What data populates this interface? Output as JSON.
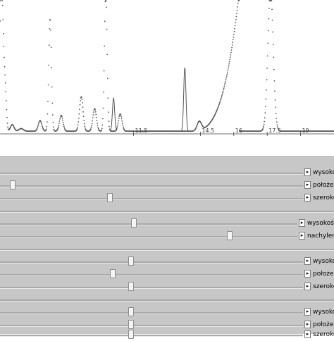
{
  "chart_data": {
    "type": "scatter",
    "x_ticks": [
      "11.5",
      "14.5",
      "16",
      "17.5",
      "19"
    ],
    "x_range": [
      5.5,
      20.5
    ],
    "y_range": [
      0,
      100
    ],
    "series": [
      {
        "style": "dotted-markers",
        "color": "#555555",
        "peaks": [
          {
            "x": 5.55,
            "height": 100,
            "width": 0.06
          },
          {
            "x": 5.65,
            "height": 48,
            "width": 0.06
          },
          {
            "x": 5.75,
            "height": 22,
            "width": 0.05
          },
          {
            "x": 6.05,
            "height": 5,
            "width": 0.08
          },
          {
            "x": 6.45,
            "height": 2,
            "width": 0.1
          },
          {
            "x": 7.3,
            "height": 8,
            "width": 0.08
          },
          {
            "x": 7.75,
            "height": 85,
            "width": 0.06
          },
          {
            "x": 8.25,
            "height": 12,
            "width": 0.08
          },
          {
            "x": 9.15,
            "height": 26,
            "width": 0.08
          },
          {
            "x": 9.75,
            "height": 17,
            "width": 0.08
          },
          {
            "x": 10.25,
            "height": 106,
            "width": 0.06
          },
          {
            "x": 10.9,
            "height": 13,
            "width": 0.08
          },
          {
            "x": 14.45,
            "height": 7,
            "width": 0.1
          },
          {
            "x": 17.65,
            "height": 106,
            "width": 0.12
          }
        ],
        "rise": {
          "start_x": 14.0,
          "end_x": 16.25,
          "end_height": 106
        },
        "baseline": 2
      },
      {
        "style": "line",
        "color": "#555555",
        "peaks": [
          {
            "x": 10.6,
            "height": 25,
            "width": 0.05
          },
          {
            "x": 13.8,
            "height": 48,
            "width": 0.05
          }
        ]
      }
    ]
  },
  "controls": [
    {
      "label": "wysoko",
      "thumb_value": null,
      "action": "arrow-right"
    },
    {
      "label": "położen",
      "thumb_value": 0.02,
      "action": "arrow-right"
    },
    {
      "label": "szeroko",
      "thumb_value": 0.35,
      "action": "arrow-right"
    },
    {
      "label": "",
      "thumb_value": null,
      "action": ""
    },
    {
      "label": "wysokość",
      "thumb_value": 0.44,
      "action": "arrow-right"
    },
    {
      "label": "nachylenie",
      "thumb_value": 0.77,
      "action": "arrow-right"
    },
    {
      "label": "",
      "thumb_value": null,
      "action": ""
    },
    {
      "label": "wysoko",
      "thumb_value": 0.42,
      "action": "arrow-right"
    },
    {
      "label": "położen",
      "thumb_value": 0.36,
      "action": "arrow-right"
    },
    {
      "label": "szeroko",
      "thumb_value": 0.42,
      "action": "arrow-right"
    },
    {
      "label": "",
      "thumb_value": null,
      "action": ""
    },
    {
      "label": "wysoko",
      "thumb_value": 0.42,
      "action": "arrow-right"
    },
    {
      "label": "położen",
      "thumb_value": 0.42,
      "action": "arrow-right"
    },
    {
      "label": "szeroko",
      "thumb_value": 0.42,
      "action": "arrow-right"
    }
  ],
  "colors": {
    "panel_bg": "#c7c7c7",
    "plot_bg": "#ffffff",
    "trace": "#555555"
  }
}
